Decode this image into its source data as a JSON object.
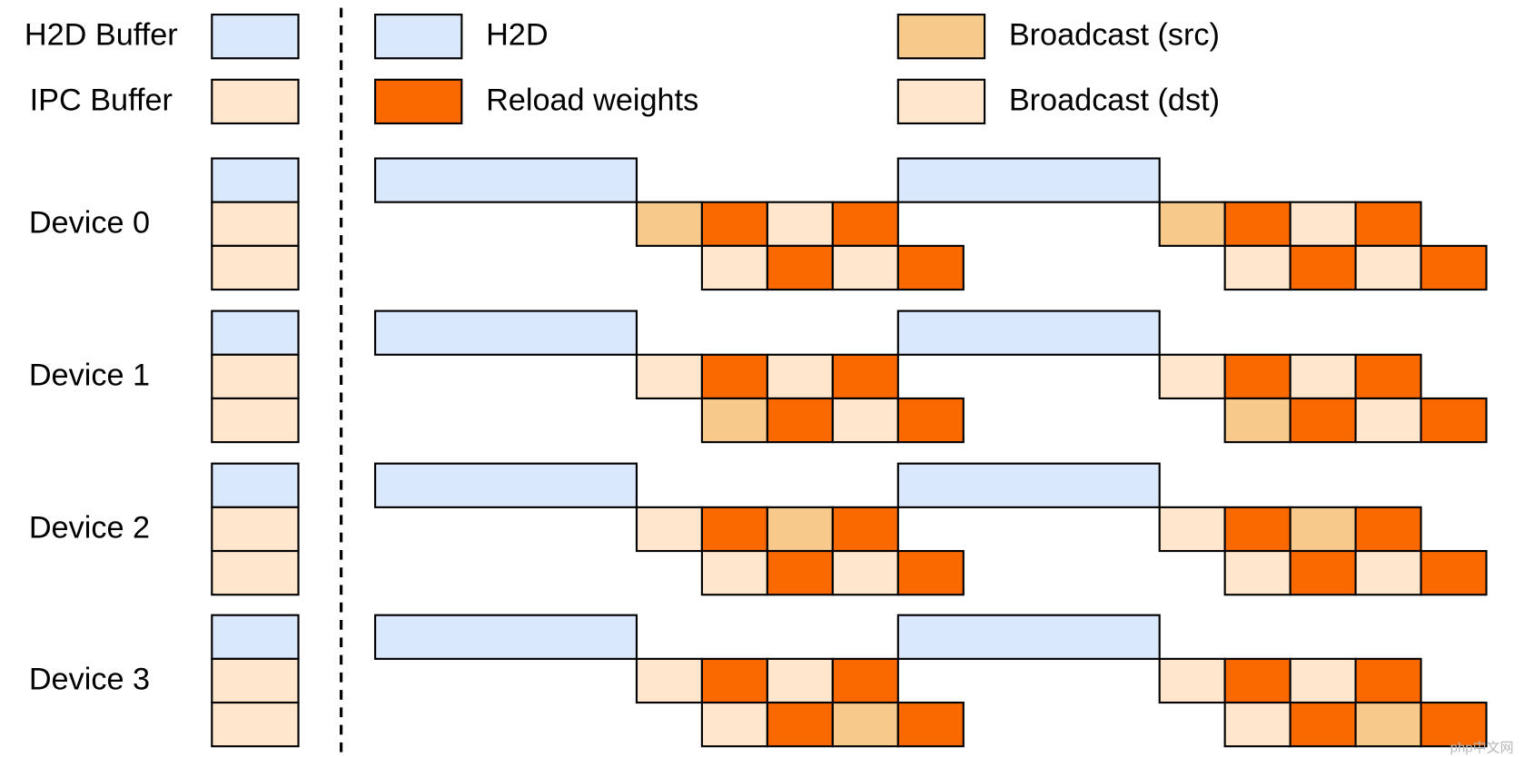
{
  "buffer_legend": [
    "H2D Buffer",
    "IPC Buffer"
  ],
  "legend": [
    "H2D",
    "Reload weights",
    "Broadcast (src)",
    "Broadcast (dst)"
  ],
  "devices": [
    "Device 0",
    "Device 1",
    "Device 2",
    "Device 3"
  ],
  "watermark": "php中文网"
}
